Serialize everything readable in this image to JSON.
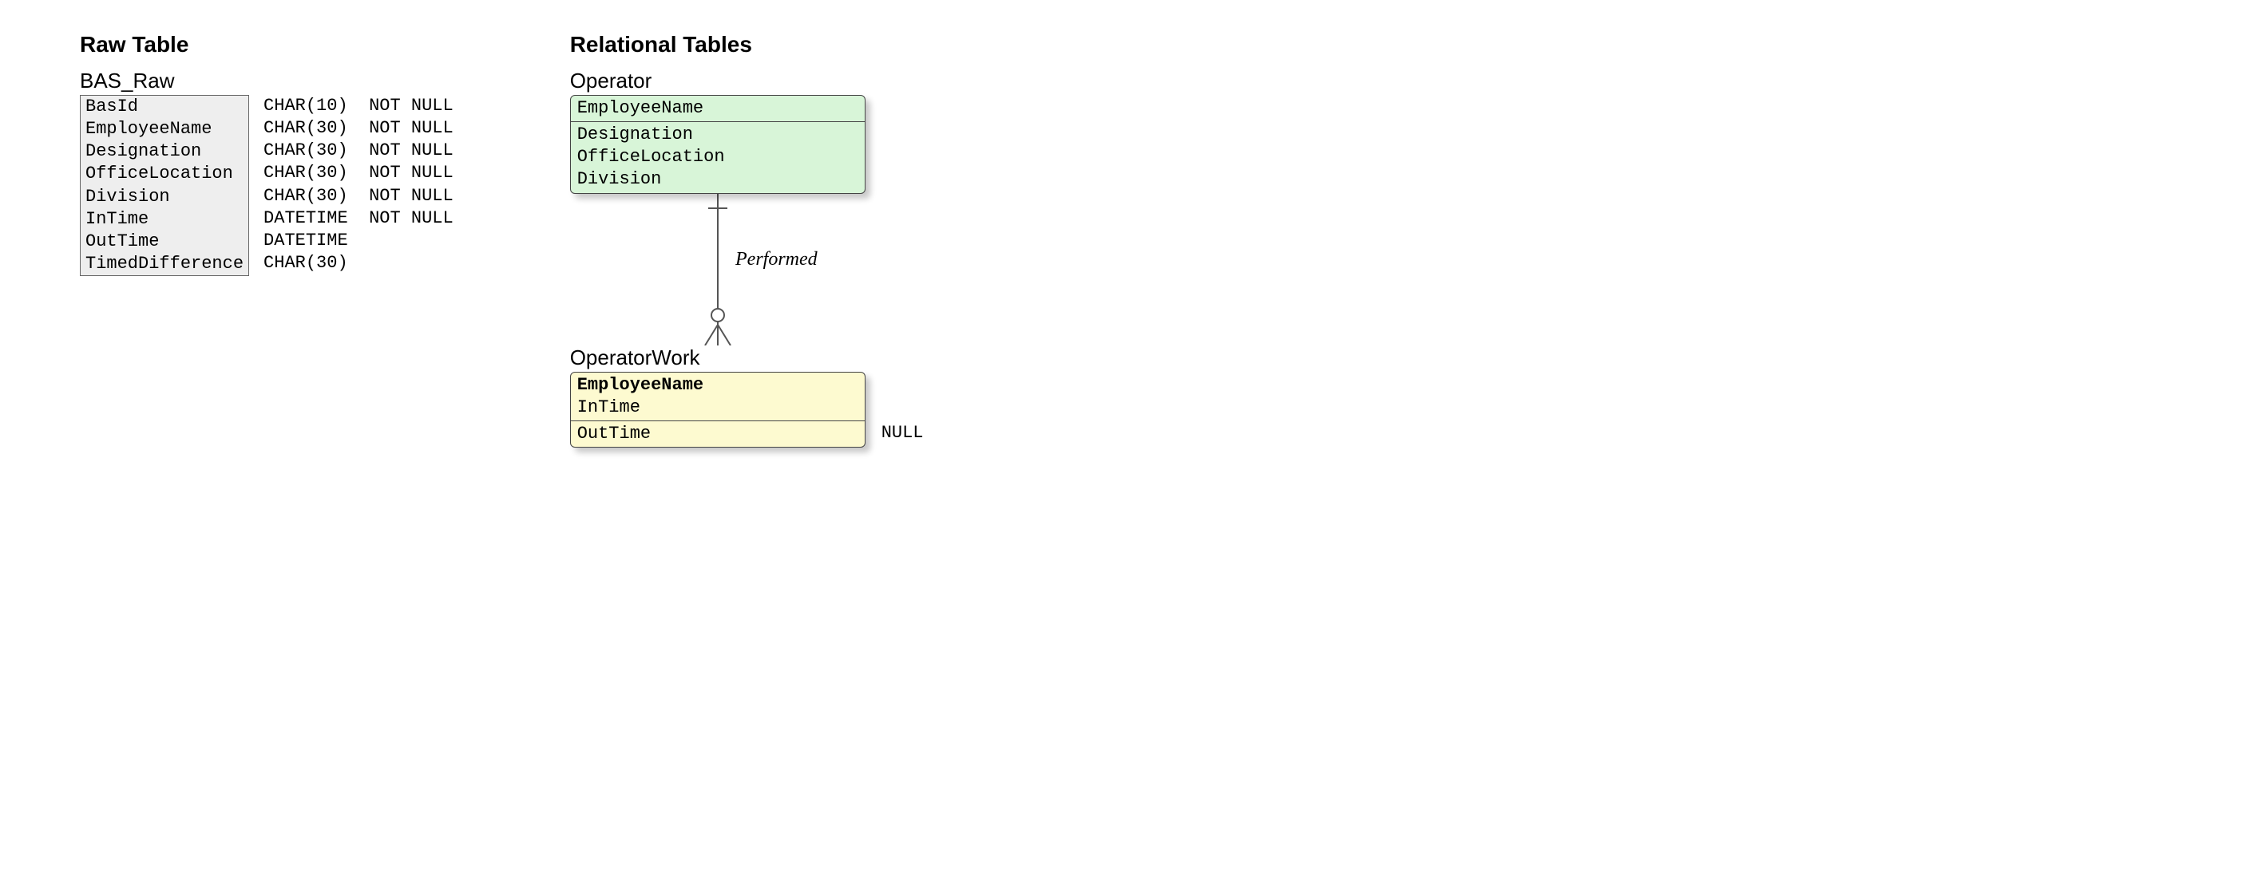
{
  "left": {
    "section_title": "Raw Table",
    "table_title": "BAS_Raw",
    "columns": [
      {
        "name": "BasId",
        "type": "CHAR(10)",
        "null": "NOT NULL"
      },
      {
        "name": "EmployeeName",
        "type": "CHAR(30)",
        "null": "NOT NULL"
      },
      {
        "name": "Designation",
        "type": "CHAR(30)",
        "null": "NOT NULL"
      },
      {
        "name": "OfficeLocation",
        "type": "CHAR(30)",
        "null": "NOT NULL"
      },
      {
        "name": "Division",
        "type": "CHAR(30)",
        "null": "NOT NULL"
      },
      {
        "name": "InTime",
        "type": "DATETIME",
        "null": "NOT NULL"
      },
      {
        "name": "OutTime",
        "type": "DATETIME",
        "null": ""
      },
      {
        "name": "TimedDifference",
        "type": "CHAR(30)",
        "null": ""
      }
    ],
    "box_bg": "#eeeeee",
    "box_border": "#666666",
    "type_col_width": 10
  },
  "right": {
    "section_title": "Relational Tables",
    "operator": {
      "title": "Operator",
      "bg": "#d8f5d8",
      "pk": [
        "EmployeeName"
      ],
      "attrs": [
        "Designation",
        "OfficeLocation",
        "Division"
      ]
    },
    "relationship_label": "Performed",
    "operatorwork": {
      "title": "OperatorWork",
      "bg": "#fdfad0",
      "pk": [
        "EmployeeName",
        "InTime"
      ],
      "pk_bold": [
        "EmployeeName"
      ],
      "attrs": [
        "OutTime"
      ],
      "attr_notes": {
        "OutTime": "NULL"
      }
    },
    "line_color": "#555555",
    "shadow": "rgba(0,0,0,0.22)"
  }
}
